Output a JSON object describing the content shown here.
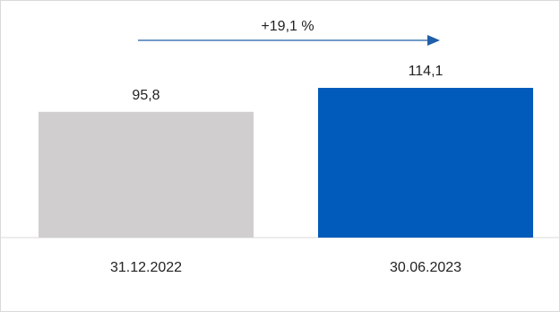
{
  "chart_data": {
    "type": "bar",
    "categories": [
      "31.12.2022",
      "30.06.2023"
    ],
    "values": [
      95.8,
      114.1
    ],
    "value_labels": [
      "95,8",
      "114,1"
    ],
    "bar_colors": [
      "#d0cece",
      "#005bbb"
    ],
    "ylim": [
      0,
      150
    ],
    "grid": false,
    "legend": "none",
    "title": "",
    "xlabel": "",
    "ylabel": "",
    "annotation": {
      "text": "+19,1 %",
      "arrow_color": "#1f5fa8",
      "direction": "right"
    }
  }
}
